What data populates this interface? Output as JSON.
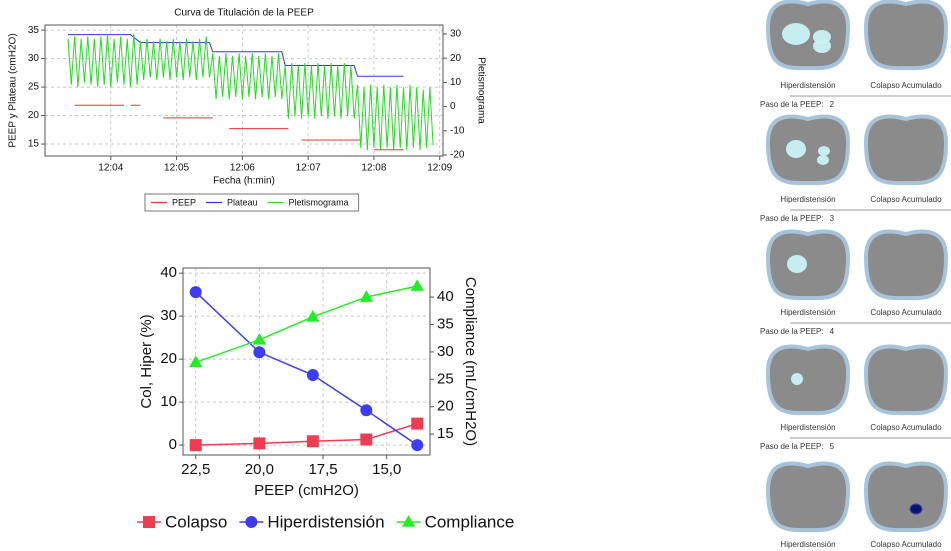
{
  "chart_data": [
    {
      "type": "line",
      "title": "Curva de Titulación de la PEEP",
      "x_label": "Fecha (h:min)",
      "y_label": "PEEP y Plateau (cmH2O)",
      "y2_label": "Pletismograma",
      "xlim": [
        723,
        729.05
      ],
      "xticks": [
        {
          "value": 724,
          "label": "12:04"
        },
        {
          "value": 725,
          "label": "12:05"
        },
        {
          "value": 726,
          "label": "12:06"
        },
        {
          "value": 727,
          "label": "12:07"
        },
        {
          "value": 728,
          "label": "12:08"
        },
        {
          "value": 729,
          "label": "12:09"
        }
      ],
      "ylim": [
        12.9,
        35.9
      ],
      "yticks": [
        15,
        20,
        25,
        30,
        35
      ],
      "y2lim": [
        -20.4,
        33.7
      ],
      "y2ticks": [
        -20,
        -10,
        0,
        10,
        20,
        30
      ],
      "grid": true,
      "series": [
        {
          "name": "PEEP",
          "color": "#ee3333",
          "x": [
            723.45,
            724.2,
            724.2,
            724.3,
            724.45,
            724.45,
            724.8,
            725.55,
            725.55,
            725.8,
            726.7,
            726.7,
            726.9,
            727.8,
            727.8,
            728.0,
            728.45
          ],
          "values": [
            21.8,
            21.8,
            null,
            21.8,
            21.8,
            null,
            19.6,
            19.6,
            null,
            17.7,
            17.7,
            null,
            15.7,
            15.7,
            null,
            14,
            14
          ]
        },
        {
          "name": "Plateau",
          "color": "#3333ee",
          "x": [
            723.35,
            724.3,
            724.45,
            725.5,
            725.55,
            726.6,
            726.65,
            727.7,
            727.75,
            728.45
          ],
          "values": [
            34.2,
            34.2,
            32.8,
            32.8,
            31.2,
            31.2,
            28.8,
            28.8,
            26.9,
            26.9
          ]
        },
        {
          "name": "Pletismograma",
          "color": "#22dd22",
          "axis": "y2",
          "x": [
            723.35,
            723.4,
            723.45,
            723.5,
            723.55,
            723.6,
            723.65,
            723.7,
            723.75,
            723.8,
            723.85,
            723.9,
            723.95,
            724,
            724.05,
            724.1,
            724.15,
            724.2,
            724.25,
            724.3,
            724.35,
            724.4,
            724.45,
            724.5,
            724.55,
            724.6,
            724.65,
            724.7,
            724.75,
            724.8,
            724.85,
            724.9,
            724.95,
            725,
            725.05,
            725.1,
            725.15,
            725.2,
            725.25,
            725.3,
            725.35,
            725.4,
            725.45,
            725.5,
            725.55,
            725.6,
            725.65,
            725.7,
            725.75,
            725.8,
            725.85,
            725.9,
            725.95,
            726,
            726.05,
            726.1,
            726.15,
            726.2,
            726.25,
            726.3,
            726.35,
            726.4,
            726.45,
            726.5,
            726.55,
            726.6,
            726.65,
            726.7,
            726.75,
            726.8,
            726.85,
            726.9,
            726.95,
            727,
            727.05,
            727.1,
            727.15,
            727.2,
            727.25,
            727.3,
            727.35,
            727.4,
            727.45,
            727.5,
            727.55,
            727.6,
            727.65,
            727.7,
            727.75,
            727.8,
            727.85,
            727.9,
            727.95,
            728,
            728.05,
            728.1,
            728.15,
            728.2,
            728.25,
            728.3,
            728.35,
            728.4,
            728.45,
            728.5,
            728.55,
            728.6,
            728.65,
            728.7,
            728.75,
            728.8,
            728.85,
            728.9
          ],
          "values": [
            28,
            9,
            29,
            8,
            28,
            10,
            29,
            9,
            28,
            8,
            29,
            9,
            30,
            8,
            28,
            10,
            29,
            9,
            28,
            8,
            30,
            9,
            27,
            11,
            28,
            12,
            27,
            11,
            28,
            12,
            27,
            11,
            28,
            12,
            27,
            11,
            28,
            12,
            27,
            11,
            28,
            12,
            29,
            12,
            22,
            3,
            21,
            4,
            22,
            3,
            21,
            4,
            22,
            3,
            21,
            4,
            22,
            3,
            21,
            4,
            22,
            3,
            21,
            4,
            22,
            3,
            17,
            -5,
            18,
            -4,
            17,
            -5,
            18,
            -4,
            17,
            -5,
            18,
            -4,
            17,
            -5,
            18,
            -4,
            17,
            -5,
            18,
            -4,
            17,
            -5,
            9,
            -17,
            8,
            -18,
            9,
            -17,
            8,
            -18,
            9,
            -17,
            8,
            -18,
            9,
            -17,
            8,
            -18,
            9,
            -17,
            8,
            -18,
            7,
            -17,
            8,
            -16
          ]
        }
      ]
    },
    {
      "type": "line",
      "x_label": "PEEP (cmH2O)",
      "y_label": "Col, Hiper (%)",
      "y2_label": "Compliance (mL/cmH2O)",
      "x": [
        22.5,
        20.0,
        17.9,
        15.8,
        13.8
      ],
      "xlim": [
        23.0,
        13.3
      ],
      "xticks": [
        {
          "value": 22.5,
          "label": "22,5"
        },
        {
          "value": 20,
          "label": "20,0"
        },
        {
          "value": 17.5,
          "label": "17,5"
        },
        {
          "value": 15,
          "label": "15,0"
        }
      ],
      "ylim": [
        -2.3,
        41.2
      ],
      "yticks": [
        0,
        10,
        20,
        30,
        40
      ],
      "y2lim": [
        11.2,
        45.3
      ],
      "y2ticks": [
        15,
        20,
        25,
        30,
        35,
        40
      ],
      "grid": true,
      "series": [
        {
          "name": "Colapso",
          "color": "#f03c50",
          "marker": "square",
          "values": [
            0,
            0.4,
            0.9,
            1.3,
            5
          ]
        },
        {
          "name": "Hiperdistensión",
          "color": "#3c3cf0",
          "marker": "circle",
          "values": [
            35.6,
            21.6,
            16.3,
            8.1,
            0
          ]
        },
        {
          "name": "Compliance",
          "color": "#22ee22",
          "marker": "triangle",
          "axis": "y2",
          "values": [
            28.1,
            32.2,
            36.4,
            40,
            42
          ]
        }
      ]
    }
  ],
  "eit_panel": {
    "captions": [
      "Hiperdistensión",
      "Colapso Acumulado"
    ],
    "step_label": "Paso de la PEEP:",
    "steps": [
      2,
      3,
      4,
      5
    ]
  }
}
